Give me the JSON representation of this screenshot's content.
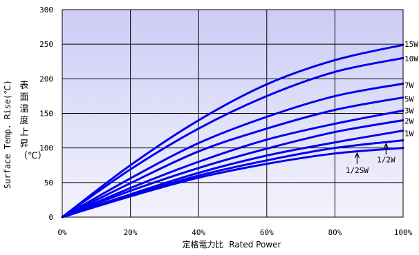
{
  "chart_data": {
    "type": "line",
    "xlabel_jp": "定格電力比",
    "xlabel_en": "Rated Power",
    "ylabel_en": "Surface Temp. Rise(℃)",
    "ylabel_jp": "表面温度上昇（℃）",
    "xlim": [
      0,
      100
    ],
    "ylim": [
      0,
      300
    ],
    "x_ticks": [
      "0%",
      "20%",
      "40%",
      "60%",
      "80%",
      "100%"
    ],
    "y_ticks": [
      "0",
      "50",
      "100",
      "150",
      "200",
      "250",
      "300"
    ],
    "grid": true,
    "line_color": "#0000ee",
    "x": [
      0,
      20,
      40,
      60,
      80,
      100
    ],
    "series": [
      {
        "name": "15W",
        "values": [
          0,
          75,
          140,
          192,
          227,
          249
        ]
      },
      {
        "name": "10W",
        "values": [
          0,
          69,
          128,
          175,
          210,
          230
        ]
      },
      {
        "name": "7W",
        "values": [
          0,
          56,
          107,
          145,
          175,
          193
        ]
      },
      {
        "name": "5W",
        "values": [
          0,
          49,
          95,
          128,
          155,
          173
        ]
      },
      {
        "name": "3W",
        "values": [
          0,
          42,
          80,
          112,
          135,
          154
        ]
      },
      {
        "name": "2W",
        "values": [
          0,
          38,
          71,
          99,
          123,
          140
        ]
      },
      {
        "name": "1W",
        "values": [
          0,
          33,
          64,
          89,
          108,
          125
        ]
      },
      {
        "name": "1/2W",
        "values": [
          0,
          31,
          60,
          82,
          100,
          111
        ]
      },
      {
        "name": "1/2SW",
        "values": [
          0,
          30,
          57,
          77,
          92,
          100
        ]
      }
    ],
    "annotations": [
      "1/2SW",
      "1/2W"
    ]
  }
}
